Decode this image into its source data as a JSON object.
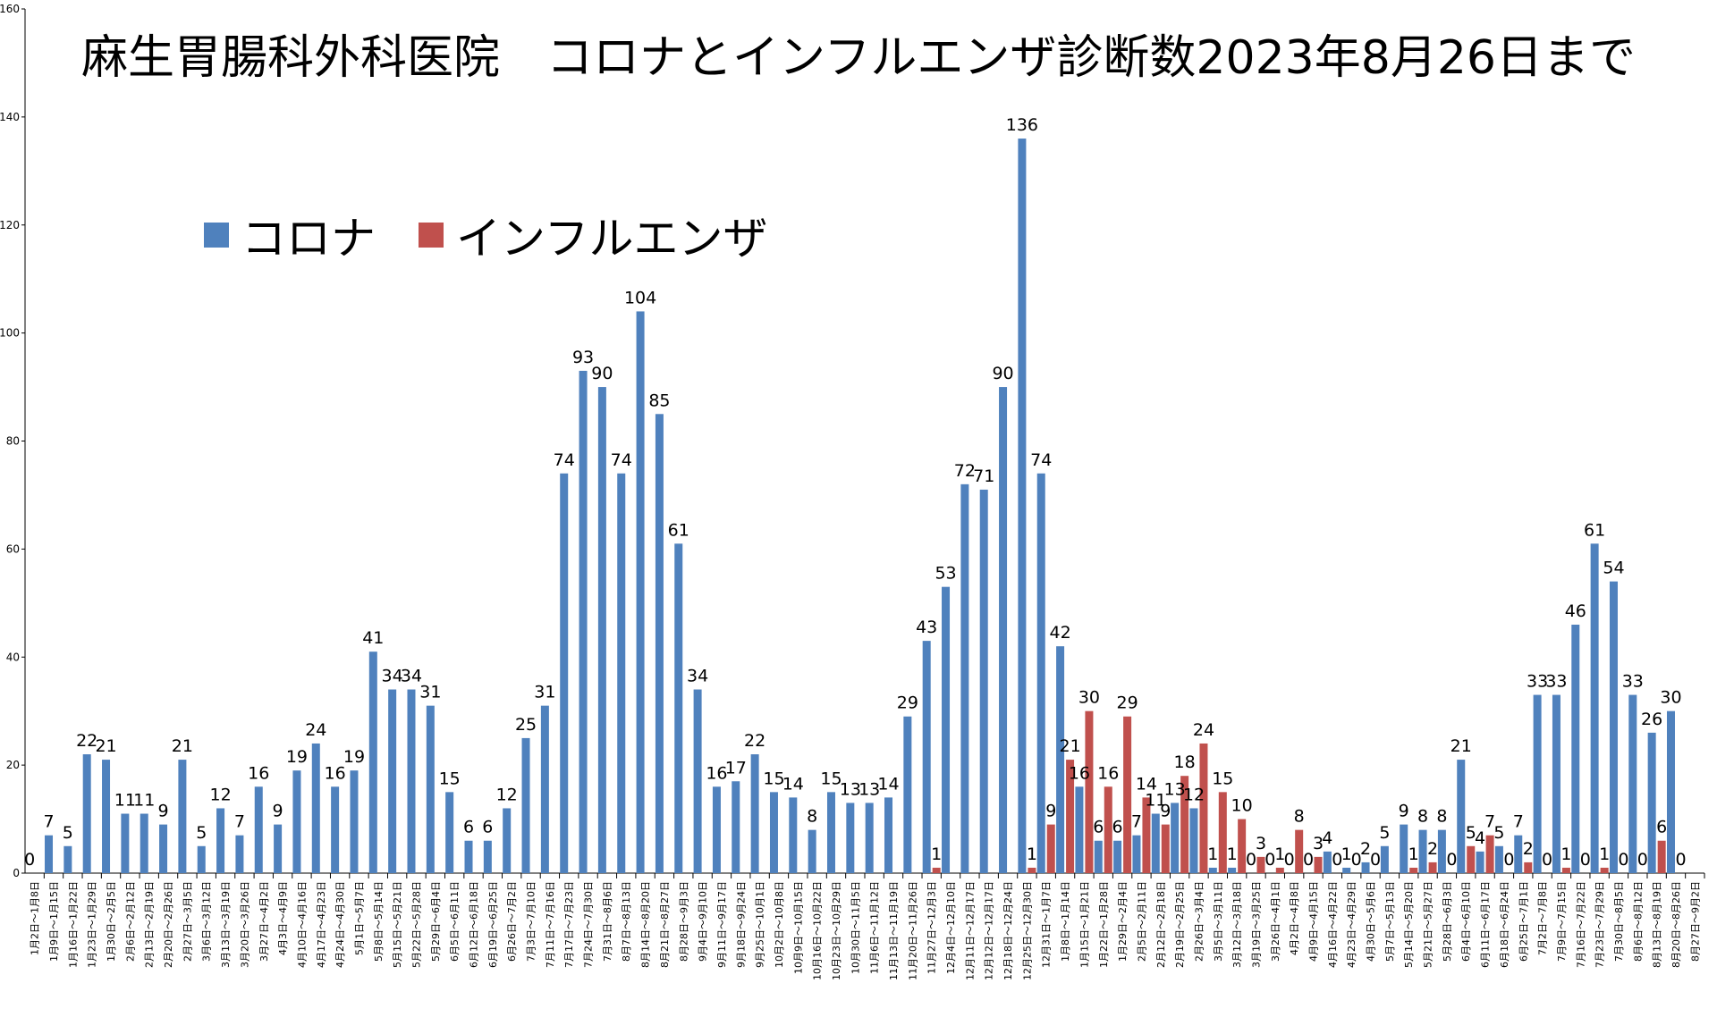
{
  "chart_data": {
    "type": "bar",
    "title": "麻生胃腸科外科医院　コロナとインフルエンザ診断数2023年8月26日まで",
    "ylim": [
      0,
      160
    ],
    "yticks": [
      0,
      20,
      40,
      60,
      80,
      100,
      120,
      140,
      160
    ],
    "grid": false,
    "legend_placement": "top-left",
    "colors": {
      "corona": "#4F81BD",
      "influenza": "#C0504D"
    },
    "categories": [
      "1月2日～1月8日",
      "1月9日～1月15日",
      "1月16日～1月22日",
      "1月23日～1月29日",
      "1月30日～2月5日",
      "2月6日～2月12日",
      "2月13日～2月19日",
      "2月20日～2月26日",
      "2月27日～3月5日",
      "3月6日～3月12日",
      "3月13日～3月19日",
      "3月20日～3月26日",
      "3月27日～4月2日",
      "4月3日～4月9日",
      "4月10日～4月16日",
      "4月17日～4月23日",
      "4月24日～4月30日",
      "5月1日～5月7日",
      "5月8日～5月14日",
      "5月15日～5月21日",
      "5月22日～5月28日",
      "5月29日～6月4日",
      "6月5日～6月11日",
      "6月12日～6月18日",
      "6月19日～6月25日",
      "6月26日～7月2日",
      "7月3日～7月10日",
      "7月11日～7月16日",
      "7月17日～7月23日",
      "7月24日～7月30日",
      "7月31日～8月6日",
      "8月7日～8月13日",
      "8月14日～8月20日",
      "8月21日～8月27日",
      "8月28日～9月3日",
      "9月4日～9月10日",
      "9月11日～9月17日",
      "9月18日～9月24日",
      "9月25日～10月1日",
      "10月2日～10月8日",
      "10月9日～10月15日",
      "10月16日～10月22日",
      "10月23日～10月29日",
      "10月30日～11月5日",
      "11月6日～11月12日",
      "11月13日～11月19日",
      "11月20日～11月26日",
      "11月27日～12月3日",
      "12月4日～12月10日",
      "12月11日～12月17日",
      "12月12日～12月17日",
      "12月18日～12月24日",
      "12月25日～12月30日",
      "12月31日～1月7日",
      "1月8日～1月14日",
      "1月15日～1月21日",
      "1月22日～1月28日",
      "1月29日～2月4日",
      "2月5日～2月11日",
      "2月12日～2月18日",
      "2月19日～2月25日",
      "2月26日～3月4日",
      "3月5日～3月11日",
      "3月12日～3月18日",
      "3月19日～3月25日",
      "3月26日～4月1日",
      "4月2日～4月8日",
      "4月9日～4月15日",
      "4月16日～4月22日",
      "4月23日～4月29日",
      "4月30日～5月6日",
      "5月7日～5月13日",
      "5月14日～5月20日",
      "5月21日～5月27日",
      "5月28日～6月3日",
      "6月4日～6月10日",
      "6月11日～6月17日",
      "6月18日～6月24日",
      "6月25日～7月1日",
      "7月2日～7月8日",
      "7月9日～7月15日",
      "7月16日～7月22日",
      "7月23日～7月29日",
      "7月30日～8月5日",
      "8月6日～8月12日",
      "8月13日～8月19日",
      "8月20日～8月26日",
      "8月27日～9月2日"
    ],
    "series": [
      {
        "name": "コロナ",
        "values": [
          0,
          7,
          5,
          22,
          21,
          11,
          11,
          9,
          21,
          5,
          12,
          7,
          16,
          9,
          19,
          24,
          16,
          19,
          41,
          34,
          34,
          31,
          15,
          6,
          6,
          12,
          25,
          31,
          74,
          93,
          90,
          74,
          104,
          85,
          61,
          34,
          16,
          17,
          22,
          15,
          14,
          8,
          15,
          13,
          13,
          14,
          29,
          43,
          53,
          72,
          71,
          90,
          136,
          74,
          42,
          16,
          6,
          6,
          7,
          11,
          13,
          12,
          1,
          1,
          0,
          0,
          0,
          0,
          4,
          1,
          2,
          5,
          9,
          8,
          8,
          21,
          4,
          5,
          7,
          33,
          33,
          46,
          61,
          54,
          33,
          26,
          30,
          null
        ]
      },
      {
        "name": "インフルエンザ",
        "values": [
          null,
          null,
          null,
          null,
          null,
          null,
          null,
          null,
          null,
          null,
          null,
          null,
          null,
          null,
          null,
          null,
          null,
          null,
          null,
          null,
          null,
          null,
          null,
          null,
          null,
          null,
          null,
          null,
          null,
          null,
          null,
          null,
          null,
          null,
          null,
          null,
          null,
          null,
          null,
          null,
          null,
          null,
          null,
          null,
          null,
          null,
          null,
          1,
          null,
          null,
          null,
          null,
          1,
          9,
          21,
          30,
          16,
          29,
          14,
          9,
          18,
          24,
          15,
          10,
          3,
          1,
          8,
          3,
          0,
          0,
          0,
          null,
          1,
          2,
          0,
          5,
          7,
          0,
          2,
          0,
          1,
          0,
          1,
          0,
          0,
          6,
          0,
          null
        ]
      }
    ]
  }
}
